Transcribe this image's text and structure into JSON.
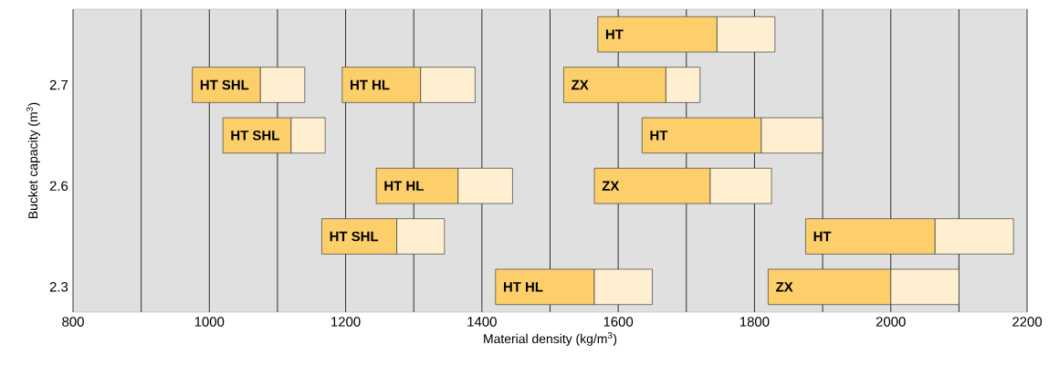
{
  "chart_data": {
    "type": "bar",
    "orientation": "horizontal",
    "xlabel": "Material density (kg/m$^{3}$)",
    "ylabel": "Bucket capacity (m$^{3}$)",
    "categories": [
      null,
      "2.7",
      null,
      "2.6",
      null,
      "2.3"
    ],
    "xlim": [
      800,
      2200
    ],
    "xticks": [
      800,
      {
        "value": 900,
        "label": null
      },
      1000,
      {
        "value": 1100,
        "label": null
      },
      1200,
      {
        "value": 1300,
        "label": null
      },
      1400,
      {
        "value": 1500,
        "label": null
      },
      1600,
      {
        "value": 1700,
        "label": null
      },
      1800,
      {
        "value": 1900,
        "label": null
      },
      2000,
      {
        "value": 2100,
        "label": null
      },
      2200
    ],
    "grid": "x",
    "series": [
      {
        "name": "HT SHL",
        "color": "#fdcf6a",
        "base": [
          null,
          975,
          1020,
          null,
          1165,
          null
        ],
        "values": [
          null,
          100,
          100,
          null,
          110,
          null
        ]
      },
      {
        "color": "#fdefcf",
        "base": [
          null,
          1075,
          1120,
          null,
          1275,
          null
        ],
        "values": [
          null,
          65,
          50,
          null,
          70,
          null
        ]
      },
      {
        "name": "HT HL",
        "color": "#fdcf6a",
        "base": [
          null,
          1195,
          null,
          1245,
          null,
          1420
        ],
        "values": [
          null,
          115,
          null,
          120,
          null,
          145
        ]
      },
      {
        "color": "#fdefcf",
        "base": [
          null,
          1310,
          null,
          1365,
          null,
          1565
        ],
        "values": [
          null,
          80,
          null,
          80,
          null,
          85
        ]
      },
      {
        "name": "HT",
        "color": "#fdcf6a",
        "base": [
          1570,
          null,
          1635,
          null,
          1875,
          null
        ],
        "values": [
          175,
          null,
          175,
          null,
          190,
          null
        ]
      },
      {
        "color": "#fdefcf",
        "base": [
          1745,
          null,
          1810,
          null,
          2065,
          null
        ],
        "values": [
          85,
          null,
          90,
          null,
          115,
          null
        ]
      },
      {
        "name": "ZX",
        "color": "#fdcf6a",
        "base": [
          null,
          1520,
          null,
          1565,
          null,
          1820
        ],
        "values": [
          null,
          150,
          null,
          170,
          null,
          180
        ]
      },
      {
        "color": "#fdefcf",
        "base": [
          null,
          1670,
          null,
          1735,
          null,
          2000
        ],
        "values": [
          null,
          50,
          null,
          90,
          null,
          100
        ]
      }
    ]
  }
}
